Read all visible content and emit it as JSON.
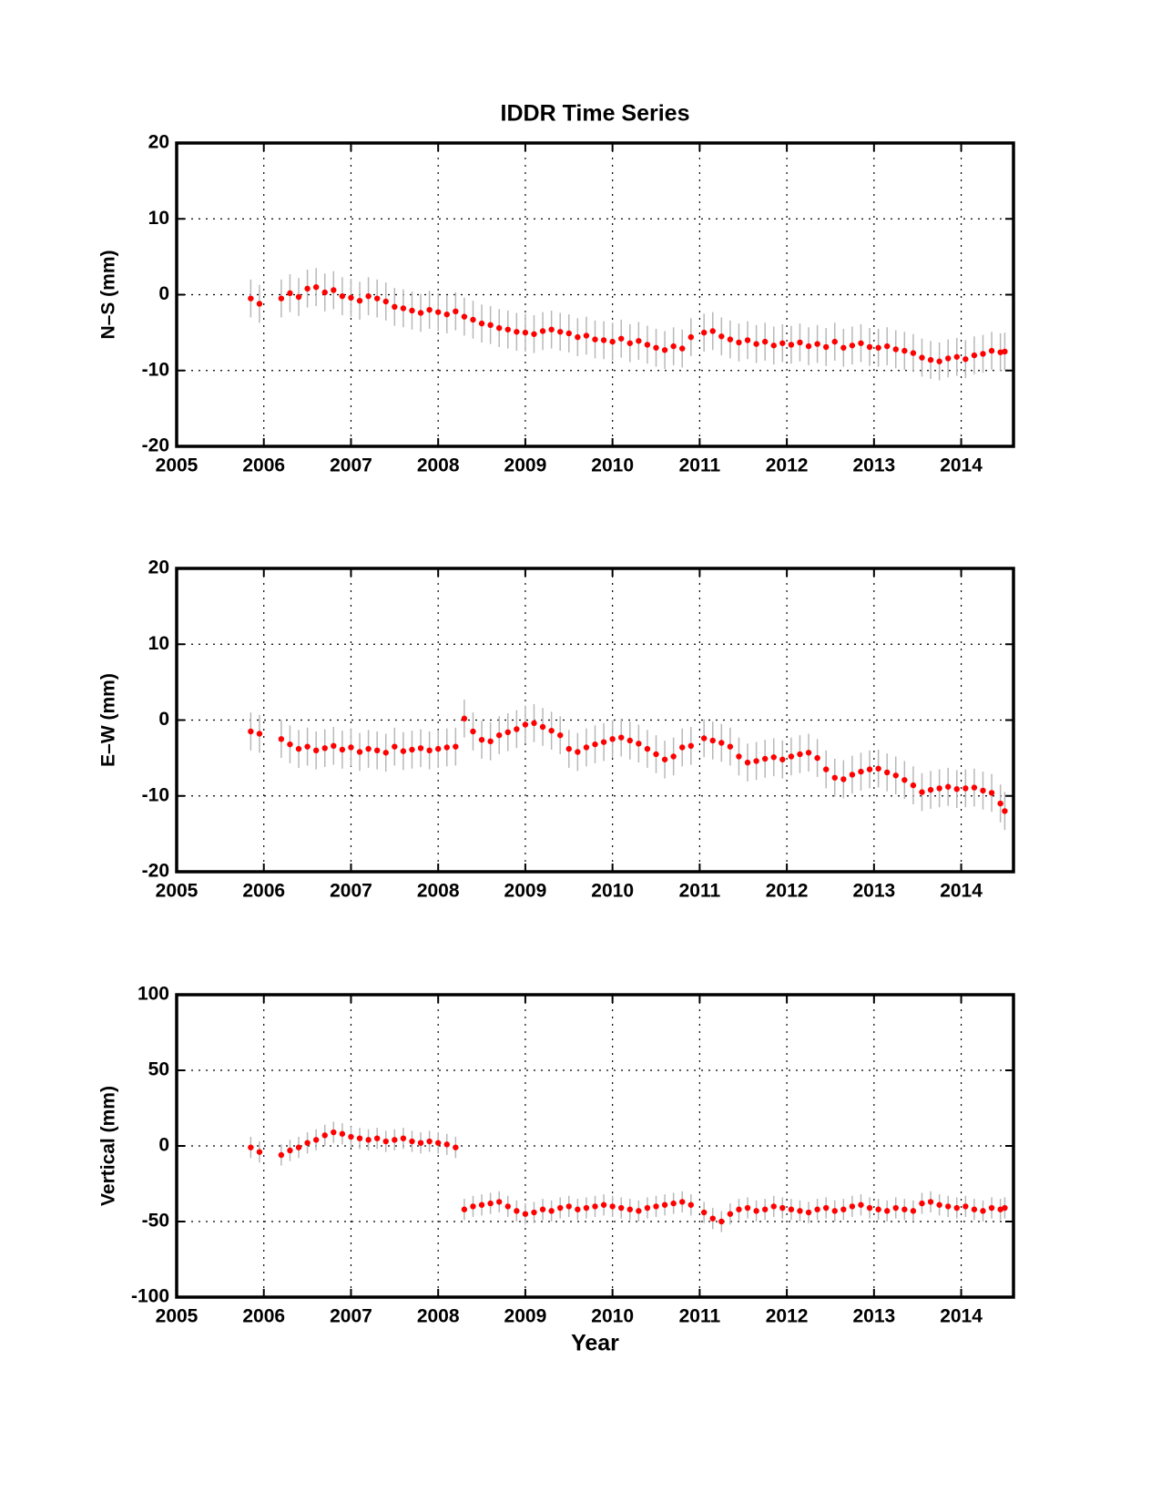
{
  "chart_data": [
    {
      "type": "scatter",
      "title": "IDDR Time Series",
      "ylabel": "N–S (mm)",
      "color": "#ff0000",
      "error_color": "#b8b8b8",
      "grid": true,
      "error": 2.5,
      "xlim": [
        2005,
        2014.6
      ],
      "ylim": [
        -20,
        20
      ],
      "xticks": [
        2005,
        2006,
        2007,
        2008,
        2009,
        2010,
        2011,
        2012,
        2013,
        2014
      ],
      "yticks": [
        -20,
        -10,
        0,
        10,
        20
      ],
      "x": [
        2005.85,
        2005.95,
        2006.2,
        2006.3,
        2006.4,
        2006.5,
        2006.6,
        2006.7,
        2006.8,
        2006.9,
        2007.0,
        2007.1,
        2007.2,
        2007.3,
        2007.4,
        2007.5,
        2007.6,
        2007.7,
        2007.8,
        2007.9,
        2008.0,
        2008.1,
        2008.2,
        2008.3,
        2008.4,
        2008.5,
        2008.6,
        2008.7,
        2008.8,
        2008.9,
        2009.0,
        2009.1,
        2009.2,
        2009.3,
        2009.4,
        2009.5,
        2009.6,
        2009.7,
        2009.8,
        2009.9,
        2010.0,
        2010.1,
        2010.2,
        2010.3,
        2010.4,
        2010.5,
        2010.6,
        2010.7,
        2010.8,
        2010.9,
        2011.05,
        2011.15,
        2011.25,
        2011.35,
        2011.45,
        2011.55,
        2011.65,
        2011.75,
        2011.85,
        2011.95,
        2012.05,
        2012.15,
        2012.25,
        2012.35,
        2012.45,
        2012.55,
        2012.65,
        2012.75,
        2012.85,
        2012.95,
        2013.05,
        2013.15,
        2013.25,
        2013.35,
        2013.45,
        2013.55,
        2013.65,
        2013.75,
        2013.85,
        2013.95,
        2014.05,
        2014.15,
        2014.25,
        2014.35,
        2014.45,
        2014.5
      ],
      "values": [
        -0.5,
        -1.2,
        -0.5,
        0.2,
        -0.3,
        0.8,
        1.0,
        0.3,
        0.6,
        -0.2,
        -0.4,
        -0.8,
        -0.2,
        -0.5,
        -0.9,
        -1.6,
        -1.8,
        -2.1,
        -2.4,
        -2.0,
        -2.3,
        -2.6,
        -2.2,
        -2.9,
        -3.3,
        -3.8,
        -4.0,
        -4.4,
        -4.6,
        -4.9,
        -5.0,
        -5.2,
        -4.8,
        -4.6,
        -4.9,
        -5.1,
        -5.6,
        -5.4,
        -5.9,
        -6.0,
        -6.2,
        -5.8,
        -6.4,
        -6.1,
        -6.6,
        -7.0,
        -7.3,
        -6.8,
        -7.1,
        -5.6,
        -5.0,
        -4.8,
        -5.5,
        -5.9,
        -6.3,
        -6.0,
        -6.5,
        -6.2,
        -6.7,
        -6.4,
        -6.6,
        -6.3,
        -6.8,
        -6.5,
        -6.9,
        -6.2,
        -7.0,
        -6.7,
        -6.4,
        -6.9,
        -7.0,
        -6.8,
        -7.2,
        -7.4,
        -7.7,
        -8.3,
        -8.6,
        -8.8,
        -8.4,
        -8.2,
        -8.5,
        -8.0,
        -7.8,
        -7.4,
        -7.6,
        -7.5
      ]
    },
    {
      "type": "scatter",
      "ylabel": "E–W (mm)",
      "color": "#ff0000",
      "error_color": "#b8b8b8",
      "grid": true,
      "error": 2.5,
      "xlim": [
        2005,
        2014.6
      ],
      "ylim": [
        -20,
        20
      ],
      "xticks": [
        2005,
        2006,
        2007,
        2008,
        2009,
        2010,
        2011,
        2012,
        2013,
        2014
      ],
      "yticks": [
        -20,
        -10,
        0,
        10,
        20
      ],
      "x": [
        2005.85,
        2005.95,
        2006.2,
        2006.3,
        2006.4,
        2006.5,
        2006.6,
        2006.7,
        2006.8,
        2006.9,
        2007.0,
        2007.1,
        2007.2,
        2007.3,
        2007.4,
        2007.5,
        2007.6,
        2007.7,
        2007.8,
        2007.9,
        2008.0,
        2008.1,
        2008.2,
        2008.3,
        2008.4,
        2008.5,
        2008.6,
        2008.7,
        2008.8,
        2008.9,
        2009.0,
        2009.1,
        2009.2,
        2009.3,
        2009.4,
        2009.5,
        2009.6,
        2009.7,
        2009.8,
        2009.9,
        2010.0,
        2010.1,
        2010.2,
        2010.3,
        2010.4,
        2010.5,
        2010.6,
        2010.7,
        2010.8,
        2010.9,
        2011.05,
        2011.15,
        2011.25,
        2011.35,
        2011.45,
        2011.55,
        2011.65,
        2011.75,
        2011.85,
        2011.95,
        2012.05,
        2012.15,
        2012.25,
        2012.35,
        2012.45,
        2012.55,
        2012.65,
        2012.75,
        2012.85,
        2012.95,
        2013.05,
        2013.15,
        2013.25,
        2013.35,
        2013.45,
        2013.55,
        2013.65,
        2013.75,
        2013.85,
        2013.95,
        2014.05,
        2014.15,
        2014.25,
        2014.35,
        2014.45,
        2014.5
      ],
      "values": [
        -1.5,
        -1.8,
        -2.5,
        -3.2,
        -3.8,
        -3.5,
        -4.0,
        -3.7,
        -3.4,
        -3.9,
        -3.6,
        -4.2,
        -3.8,
        -4.0,
        -4.3,
        -3.5,
        -4.1,
        -3.9,
        -3.7,
        -4.0,
        -3.8,
        -3.6,
        -3.5,
        0.2,
        -1.5,
        -2.6,
        -2.8,
        -2.0,
        -1.6,
        -1.2,
        -0.6,
        -0.4,
        -0.9,
        -1.4,
        -2.0,
        -3.8,
        -4.2,
        -3.6,
        -3.2,
        -2.9,
        -2.5,
        -2.3,
        -2.7,
        -3.1,
        -3.8,
        -4.5,
        -5.2,
        -4.8,
        -3.6,
        -3.4,
        -2.4,
        -2.7,
        -3.0,
        -3.5,
        -4.8,
        -5.6,
        -5.4,
        -5.1,
        -4.9,
        -5.2,
        -4.8,
        -4.5,
        -4.3,
        -5.0,
        -6.5,
        -7.6,
        -7.8,
        -7.2,
        -6.8,
        -6.5,
        -6.4,
        -6.9,
        -7.3,
        -7.9,
        -8.6,
        -9.5,
        -9.2,
        -9.0,
        -8.8,
        -9.1,
        -9.0,
        -8.9,
        -9.3,
        -9.6,
        -11.0,
        -12.0
      ]
    },
    {
      "type": "scatter",
      "ylabel": "Vertical (mm)",
      "xlabel": "Year",
      "color": "#ff0000",
      "error_color": "#b8b8b8",
      "grid": true,
      "error": 7,
      "xlim": [
        2005,
        2014.6
      ],
      "ylim": [
        -100,
        100
      ],
      "xticks": [
        2005,
        2006,
        2007,
        2008,
        2009,
        2010,
        2011,
        2012,
        2013,
        2014
      ],
      "yticks": [
        -100,
        -50,
        0,
        50,
        100
      ],
      "x": [
        2005.85,
        2005.95,
        2006.2,
        2006.3,
        2006.4,
        2006.5,
        2006.6,
        2006.7,
        2006.8,
        2006.9,
        2007.0,
        2007.1,
        2007.2,
        2007.3,
        2007.4,
        2007.5,
        2007.6,
        2007.7,
        2007.8,
        2007.9,
        2008.0,
        2008.1,
        2008.2,
        2008.3,
        2008.4,
        2008.5,
        2008.6,
        2008.7,
        2008.8,
        2008.9,
        2009.0,
        2009.1,
        2009.2,
        2009.3,
        2009.4,
        2009.5,
        2009.6,
        2009.7,
        2009.8,
        2009.9,
        2010.0,
        2010.1,
        2010.2,
        2010.3,
        2010.4,
        2010.5,
        2010.6,
        2010.7,
        2010.8,
        2010.9,
        2011.05,
        2011.15,
        2011.25,
        2011.35,
        2011.45,
        2011.55,
        2011.65,
        2011.75,
        2011.85,
        2011.95,
        2012.05,
        2012.15,
        2012.25,
        2012.35,
        2012.45,
        2012.55,
        2012.65,
        2012.75,
        2012.85,
        2012.95,
        2013.05,
        2013.15,
        2013.25,
        2013.35,
        2013.45,
        2013.55,
        2013.65,
        2013.75,
        2013.85,
        2013.95,
        2014.05,
        2014.15,
        2014.25,
        2014.35,
        2014.45,
        2014.5
      ],
      "values": [
        -1,
        -4,
        -6,
        -3,
        -1,
        2,
        4,
        7,
        9,
        8,
        6,
        5,
        4,
        5,
        3,
        4,
        5,
        3,
        2,
        3,
        2,
        1,
        -1,
        -42,
        -40,
        -39,
        -38,
        -37,
        -40,
        -43,
        -45,
        -44,
        -42,
        -43,
        -41,
        -40,
        -42,
        -41,
        -40,
        -39,
        -40,
        -41,
        -42,
        -43,
        -41,
        -40,
        -39,
        -38,
        -37,
        -39,
        -44,
        -48,
        -50,
        -45,
        -42,
        -41,
        -43,
        -42,
        -40,
        -41,
        -42,
        -43,
        -44,
        -42,
        -41,
        -43,
        -42,
        -40,
        -39,
        -41,
        -42,
        -43,
        -41,
        -42,
        -43,
        -38,
        -37,
        -39,
        -40,
        -41,
        -40,
        -42,
        -43,
        -41,
        -42,
        -41
      ]
    }
  ]
}
